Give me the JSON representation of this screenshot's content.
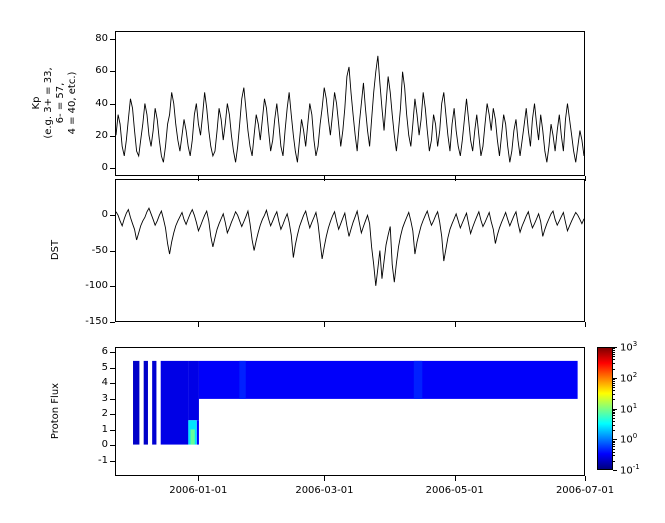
{
  "figure": {
    "background": "#ffffff",
    "line_color": "#000000",
    "axis_color": "#000000"
  },
  "chart_data": [
    {
      "id": "kp",
      "type": "line",
      "title": "",
      "ylabel_lines": [
        "Kp",
        "(e.g. 3+ = 33,",
        "6- = 57,",
        "4 = 40, etc.)"
      ],
      "ylim": [
        -5,
        85
      ],
      "yticks": [
        80,
        60,
        40,
        20,
        0
      ],
      "x_range": [
        "2005-11-23",
        "2006-07-01"
      ],
      "grid": false,
      "values": [
        20,
        33,
        27,
        13,
        7,
        17,
        30,
        43,
        37,
        23,
        10,
        7,
        17,
        27,
        40,
        33,
        20,
        13,
        23,
        37,
        30,
        17,
        7,
        3,
        13,
        27,
        33,
        47,
        40,
        27,
        17,
        10,
        20,
        30,
        23,
        13,
        7,
        17,
        33,
        40,
        27,
        20,
        33,
        47,
        37,
        23,
        13,
        7,
        10,
        23,
        37,
        30,
        17,
        27,
        40,
        33,
        20,
        10,
        3,
        13,
        27,
        43,
        50,
        37,
        23,
        13,
        7,
        20,
        33,
        27,
        17,
        30,
        43,
        37,
        23,
        10,
        17,
        30,
        40,
        27,
        13,
        7,
        23,
        37,
        47,
        33,
        20,
        10,
        3,
        17,
        30,
        23,
        13,
        27,
        40,
        33,
        17,
        7,
        13,
        27,
        37,
        50,
        43,
        30,
        20,
        33,
        47,
        40,
        27,
        13,
        23,
        37,
        57,
        63,
        47,
        33,
        20,
        10,
        27,
        40,
        53,
        37,
        23,
        13,
        30,
        47,
        60,
        70,
        53,
        37,
        23,
        40,
        57,
        47,
        33,
        20,
        10,
        23,
        37,
        60,
        50,
        33,
        20,
        13,
        27,
        43,
        33,
        20,
        30,
        47,
        37,
        23,
        10,
        17,
        33,
        27,
        13,
        23,
        40,
        47,
        33,
        20,
        10,
        27,
        37,
        23,
        13,
        7,
        17,
        30,
        43,
        30,
        17,
        10,
        23,
        33,
        20,
        7,
        13,
        27,
        40,
        33,
        23,
        37,
        30,
        17,
        7,
        20,
        33,
        27,
        13,
        3,
        10,
        23,
        30,
        17,
        7,
        17,
        27,
        37,
        23,
        13,
        30,
        40,
        27,
        17,
        33,
        23,
        10,
        3,
        13,
        27,
        20,
        10,
        23,
        33,
        20,
        10,
        30,
        40,
        30,
        20,
        10,
        3,
        13,
        23,
        17,
        7
      ]
    },
    {
      "id": "dst",
      "type": "line",
      "title": "",
      "ylabel": "DST",
      "ylim": [
        -150,
        50
      ],
      "yticks": [
        0,
        -50,
        -100,
        -150
      ],
      "x_range": [
        "2005-11-23",
        "2006-07-01"
      ],
      "grid": false,
      "values": [
        5,
        0,
        -8,
        -15,
        -5,
        3,
        8,
        -3,
        -12,
        -20,
        -35,
        -25,
        -15,
        -8,
        -3,
        5,
        10,
        2,
        -6,
        -14,
        -8,
        0,
        6,
        -5,
        -18,
        -40,
        -55,
        -38,
        -25,
        -15,
        -8,
        -2,
        4,
        -6,
        -13,
        -5,
        2,
        8,
        0,
        -10,
        -22,
        -15,
        -7,
        0,
        6,
        -8,
        -30,
        -45,
        -32,
        -20,
        -12,
        -5,
        2,
        -10,
        -25,
        -18,
        -10,
        -3,
        5,
        0,
        -8,
        -16,
        -9,
        -2,
        6,
        -12,
        -35,
        -50,
        -36,
        -24,
        -14,
        -6,
        0,
        7,
        -5,
        -15,
        -8,
        -1,
        5,
        -9,
        -20,
        -13,
        -5,
        2,
        -10,
        -28,
        -60,
        -42,
        -28,
        -16,
        -8,
        0,
        6,
        -7,
        -18,
        -10,
        -3,
        4,
        -12,
        -38,
        -62,
        -45,
        -30,
        -18,
        -9,
        -1,
        5,
        -8,
        -20,
        -12,
        -4,
        3,
        -15,
        -30,
        -20,
        -10,
        -2,
        6,
        -10,
        -25,
        -16,
        -8,
        0,
        -12,
        -45,
        -70,
        -100,
        -75,
        -50,
        -90,
        -65,
        -42,
        -28,
        -16,
        -70,
        -95,
        -68,
        -45,
        -30,
        -18,
        -10,
        -3,
        4,
        -8,
        -22,
        -55,
        -38,
        -26,
        -15,
        -7,
        0,
        6,
        -5,
        -14,
        -8,
        -1,
        5,
        -10,
        -30,
        -65,
        -48,
        -32,
        -20,
        -12,
        -5,
        2,
        -8,
        -18,
        -11,
        -4,
        3,
        -12,
        -26,
        -17,
        -9,
        -2,
        5,
        -7,
        -16,
        -10,
        -3,
        4,
        -9,
        -20,
        -40,
        -28,
        -18,
        -10,
        -3,
        4,
        -6,
        -15,
        -8,
        -1,
        5,
        -11,
        -24,
        -15,
        -8,
        -1,
        5,
        -8,
        -18,
        -12,
        -5,
        2,
        -9,
        -30,
        -20,
        -12,
        -5,
        2,
        6,
        -6,
        -14,
        -8,
        -2,
        4,
        -10,
        -22,
        -15,
        -8,
        -2,
        4,
        0,
        -6,
        -12,
        -5
      ]
    },
    {
      "id": "proton",
      "type": "heatmap",
      "title": "",
      "ylabel": "Proton Flux",
      "ylim": [
        -2,
        6.35
      ],
      "yticks": [
        6,
        5,
        4,
        3,
        2,
        1,
        0,
        -1
      ],
      "x_range": [
        "2005-11-23",
        "2006-07-01"
      ],
      "xticks": [
        "2006-01-01",
        "2006-03-01",
        "2006-05-01",
        "2006-07-01"
      ],
      "grid": false,
      "segments": [
        {
          "start": "2005-12-01",
          "end": "2005-12-04",
          "y0": 0,
          "y1": 5.5,
          "flux": 0.2,
          "color": "#0000c8"
        },
        {
          "start": "2005-12-06",
          "end": "2005-12-08",
          "y0": 0,
          "y1": 5.5,
          "flux": 0.2,
          "color": "#0000c8"
        },
        {
          "start": "2005-12-10",
          "end": "2005-12-12",
          "y0": 0,
          "y1": 5.5,
          "flux": 0.22,
          "color": "#0000d2"
        },
        {
          "start": "2005-12-14",
          "end": "2005-12-27",
          "y0": 0,
          "y1": 5.5,
          "flux": 0.25,
          "color": "#0000e6"
        },
        {
          "start": "2005-12-27",
          "end": "2006-01-01",
          "y0": 1.6,
          "y1": 5.5,
          "flux": 0.25,
          "color": "#0000e6"
        },
        {
          "start": "2005-12-27",
          "end": "2005-12-31",
          "y0": 0,
          "y1": 1.6,
          "flux": 2.5,
          "color": "#00e6ff"
        },
        {
          "start": "2005-12-28",
          "end": "2005-12-30",
          "y0": 0,
          "y1": 1.0,
          "flux": 8,
          "color": "#66ff99"
        },
        {
          "start": "2005-12-31",
          "end": "2006-01-01",
          "y0": 0,
          "y1": 1.6,
          "flux": 0.4,
          "color": "#0000ff"
        },
        {
          "start": "2006-01-01",
          "end": "2006-06-28",
          "y0": 3,
          "y1": 5.5,
          "flux": 0.3,
          "color": "#0000fa"
        },
        {
          "start": "2006-01-20",
          "end": "2006-01-23",
          "y0": 3,
          "y1": 5.5,
          "flux": 0.5,
          "color": "#0020ff"
        },
        {
          "start": "2006-04-12",
          "end": "2006-04-16",
          "y0": 3,
          "y1": 5.5,
          "flux": 0.5,
          "color": "#0020ff"
        }
      ],
      "colorbar": {
        "scale": "log",
        "range_exponents": [
          -1,
          3
        ],
        "tick_exponents": [
          3,
          2,
          1,
          0,
          -1
        ],
        "gradient_stops": [
          {
            "pos": 0.0,
            "color": "#00007f"
          },
          {
            "pos": 0.125,
            "color": "#0000ff"
          },
          {
            "pos": 0.375,
            "color": "#00ffff"
          },
          {
            "pos": 0.625,
            "color": "#ffff00"
          },
          {
            "pos": 0.875,
            "color": "#ff0000"
          },
          {
            "pos": 1.0,
            "color": "#7f0000"
          }
        ]
      }
    }
  ]
}
